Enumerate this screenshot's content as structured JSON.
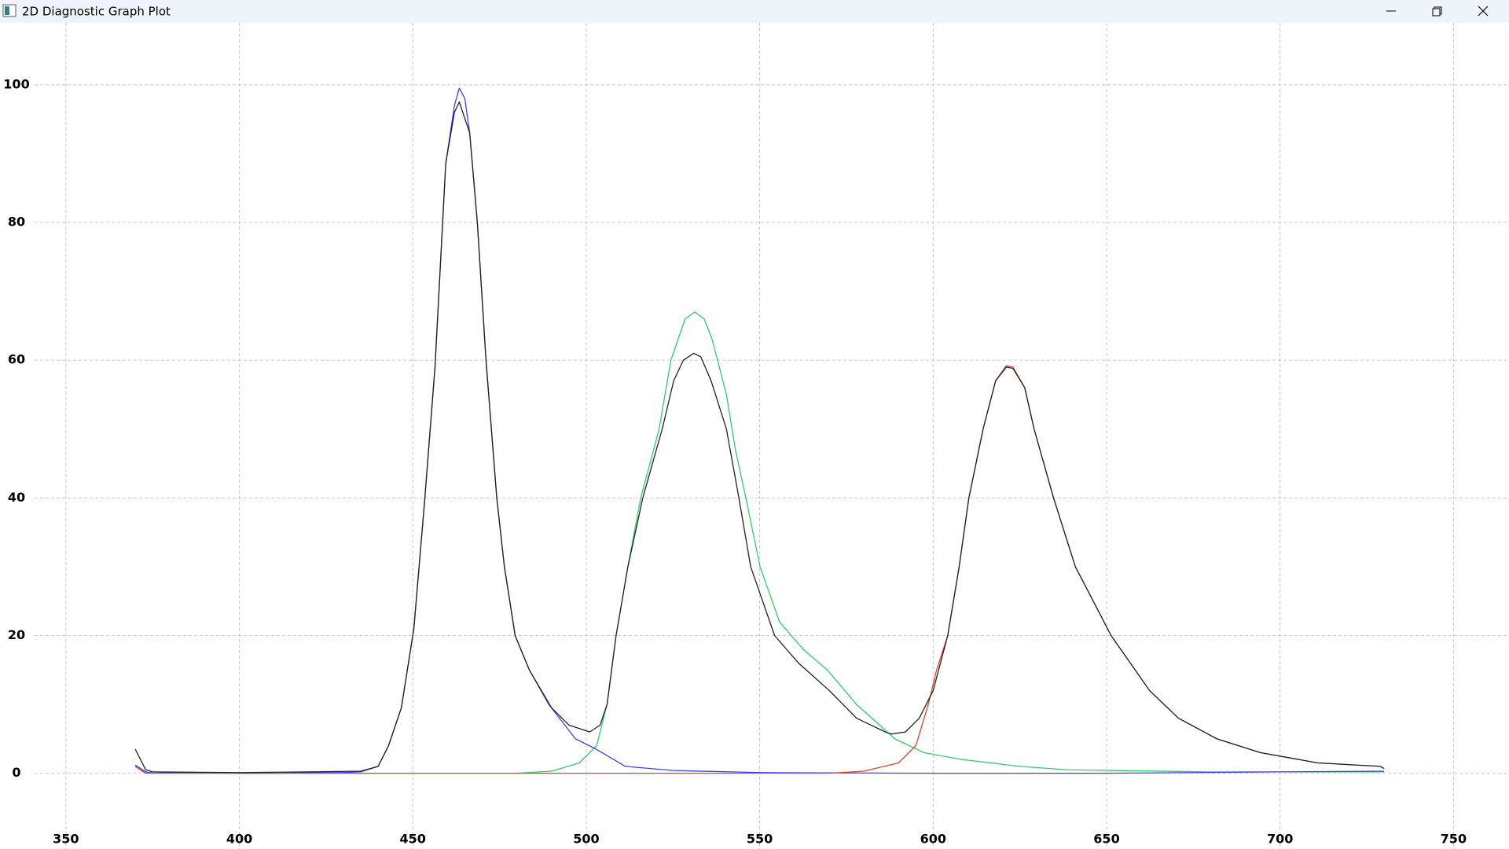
{
  "window": {
    "title": "2D Diagnostic Graph Plot"
  },
  "chart_data": {
    "type": "line",
    "xlim": [
      331,
      766
    ],
    "ylim": [
      -11,
      109
    ],
    "xticks": [
      350,
      400,
      450,
      500,
      550,
      600,
      650,
      700,
      750
    ],
    "yticks": [
      0,
      20,
      40,
      60,
      80,
      100
    ],
    "grid": true,
    "series": [
      {
        "color": "#33cc66",
        "x": [
          370,
          373,
          375,
          400,
          450,
          480,
          490,
          498,
          503,
          506,
          508.6,
          512,
          515.7,
          521,
          524.4,
          528.5,
          531.3,
          534,
          536.3,
          540.4,
          543,
          546,
          550.1,
          555.7,
          562.5,
          569.5,
          577.9,
          589,
          597.3,
          608.4,
          625,
          638.8,
          680,
          730
        ],
        "values": [
          1,
          0,
          0.2,
          0,
          0,
          0,
          0.3,
          1.5,
          4,
          10,
          20,
          30,
          40,
          50,
          60,
          66,
          67,
          66,
          63,
          55,
          47,
          40,
          30,
          22,
          18,
          15,
          10,
          5,
          3,
          2,
          1,
          0.5,
          0.2,
          0.2
        ]
      },
      {
        "color": "#3d3dff",
        "x": [
          370,
          373,
          375,
          380,
          390,
          400,
          410,
          420,
          430,
          435,
          440,
          443,
          446.7,
          450.3,
          453.4,
          456.4,
          459.5,
          462,
          463.4,
          465,
          466.4,
          468.6,
          471.1,
          474.2,
          476.4,
          479.5,
          483.6,
          489.2,
          496.9,
          502.5,
          511.3,
          525,
          550,
          600,
          650,
          700,
          730
        ],
        "values": [
          1.2,
          0.2,
          0,
          0.1,
          0.1,
          0,
          0,
          0.1,
          0.1,
          0.2,
          1,
          4,
          9.5,
          21,
          39.5,
          59,
          88.6,
          97,
          99.5,
          98,
          93,
          80,
          60,
          40,
          30,
          20,
          15,
          10,
          5,
          3.6,
          1,
          0.4,
          0.1,
          0,
          0,
          0.2,
          0.3
        ]
      },
      {
        "color": "#e8402a",
        "x": [
          370,
          373,
          375,
          400,
          500,
          570,
          580,
          590,
          595,
          598.6,
          601,
          604.2,
          607.5,
          610.3,
          614.4,
          618,
          621.1,
          623,
          626.4,
          629.1,
          634.7,
          641,
          651.3,
          662.4,
          670.7,
          681.8,
          694.3,
          710.9,
          728.9,
          730
        ],
        "values": [
          1,
          0,
          0,
          0,
          0,
          0,
          0.3,
          1.5,
          4,
          10,
          15,
          20,
          30,
          40,
          50,
          57,
          59.2,
          59,
          56,
          50,
          40,
          30,
          20,
          12,
          8,
          5,
          3,
          1.5,
          1,
          0.7
        ]
      },
      {
        "color": "#222222",
        "x": [
          370,
          373,
          375,
          400,
          420,
          435,
          440,
          443,
          446.7,
          450.3,
          453.4,
          456.4,
          459.5,
          462,
          463.4,
          466.4,
          468.6,
          471.1,
          474.2,
          476.4,
          479.5,
          483.6,
          490,
          495,
          501,
          504,
          506,
          508.6,
          512,
          516.3,
          521.9,
          525.2,
          528,
          531,
          533,
          536,
          540.4,
          544,
          547.4,
          554.3,
          561.2,
          570.1,
          577.9,
          586.2,
          588,
          592,
          596,
          600,
          604.2,
          607.5,
          610.3,
          614.4,
          618,
          621.1,
          623,
          626.4,
          629.1,
          634.7,
          641,
          651.3,
          662.4,
          670.7,
          681.8,
          694.3,
          710.9,
          728.9,
          730
        ],
        "values": [
          3.5,
          0.5,
          0.2,
          0.1,
          0.2,
          0.3,
          1,
          4,
          9.5,
          21,
          39.5,
          59,
          88.6,
          96,
          97.5,
          93,
          80,
          60,
          40,
          30,
          20,
          15,
          9.5,
          7,
          6,
          7,
          10,
          20,
          30,
          40,
          50,
          57,
          60,
          61,
          60.5,
          57,
          50,
          40,
          30,
          20,
          16,
          12,
          8,
          6,
          5.7,
          6,
          8,
          12,
          20,
          30,
          40,
          50,
          57,
          59,
          58.8,
          56,
          50,
          40,
          30,
          20,
          12,
          8,
          5,
          3,
          1.5,
          1,
          0.7
        ]
      }
    ]
  }
}
